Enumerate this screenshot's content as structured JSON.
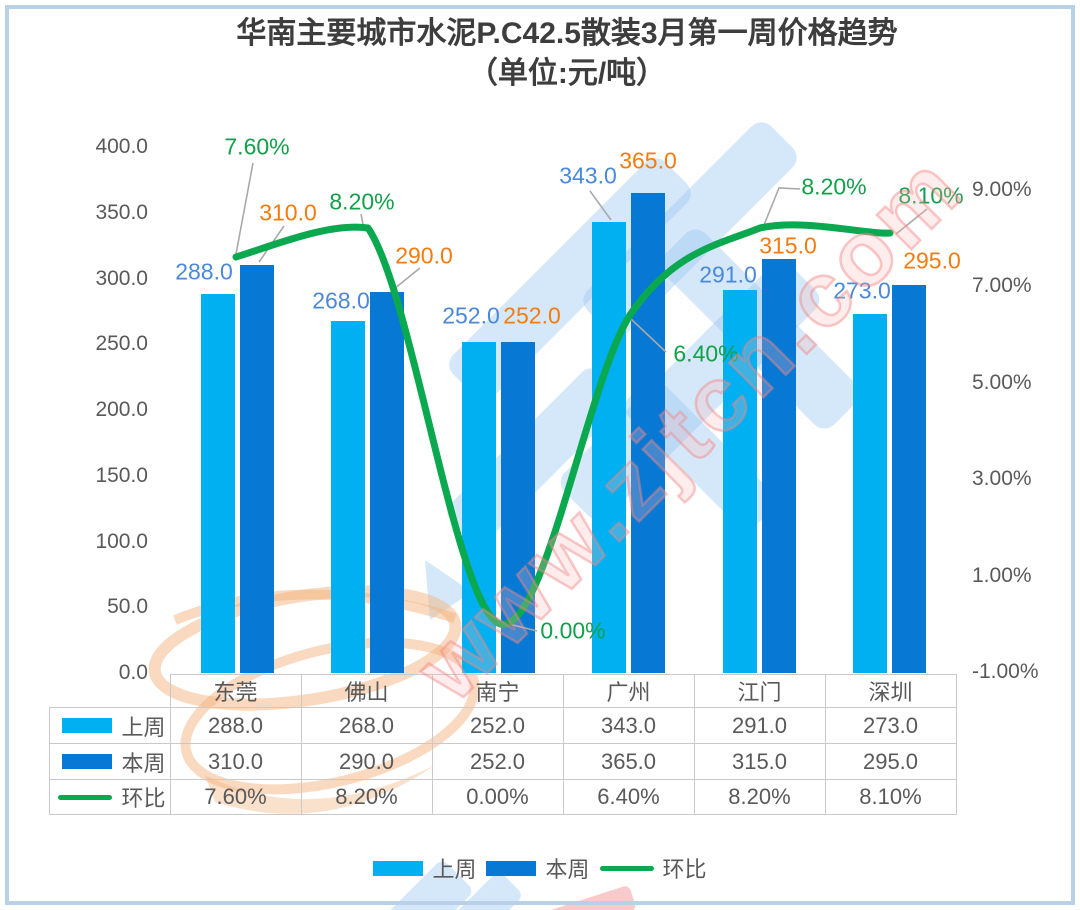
{
  "title": {
    "line1": "华南主要城市水泥P.C42.5散装3月第一周价格趋势",
    "line2": "（单位:元/吨）"
  },
  "watermark": {
    "site_text": "www.zjtcn.com"
  },
  "chart_data": {
    "type": "bar+line",
    "categories": [
      "东莞",
      "佛山",
      "南宁",
      "广州",
      "江门",
      "深圳"
    ],
    "series": [
      {
        "name": "上周",
        "type": "bar",
        "color": "#00b0f0",
        "values": [
          288.0,
          268.0,
          252.0,
          343.0,
          291.0,
          273.0
        ]
      },
      {
        "name": "本周",
        "type": "bar",
        "color": "#0778d4",
        "values": [
          310.0,
          290.0,
          252.0,
          365.0,
          315.0,
          295.0
        ]
      },
      {
        "name": "环比",
        "type": "line",
        "color": "#0aa84f",
        "unit": "%",
        "values": [
          7.6,
          8.2,
          0.0,
          6.4,
          8.2,
          8.1
        ]
      }
    ],
    "left_axis": {
      "min": 0,
      "max": 400,
      "step": 50,
      "format": "one_decimal"
    },
    "right_axis": {
      "min": -1,
      "max": 9,
      "step": 2,
      "format": "percent_two_decimals"
    },
    "gridlines": false,
    "legend_position": "bottom",
    "label_colors": {
      "last_week": "#4a88da",
      "this_week": "#f57b0d",
      "pct": "#12a04b"
    }
  },
  "table": {
    "columns": [
      "东莞",
      "佛山",
      "南宁",
      "广州",
      "江门",
      "深圳"
    ],
    "rows": [
      {
        "header": "上周",
        "swatch": "bar-light",
        "values": [
          "288.0",
          "268.0",
          "252.0",
          "343.0",
          "291.0",
          "273.0"
        ]
      },
      {
        "header": "本周",
        "swatch": "bar-dark",
        "values": [
          "310.0",
          "290.0",
          "252.0",
          "365.0",
          "315.0",
          "295.0"
        ]
      },
      {
        "header": "环比",
        "swatch": "line",
        "values": [
          "7.60%",
          "8.20%",
          "0.00%",
          "6.40%",
          "8.20%",
          "8.10%"
        ]
      }
    ]
  },
  "legend": {
    "items": [
      {
        "label": "上周",
        "swatch": "bar-light"
      },
      {
        "label": "本周",
        "swatch": "bar-dark"
      },
      {
        "label": "环比",
        "swatch": "line"
      }
    ]
  }
}
